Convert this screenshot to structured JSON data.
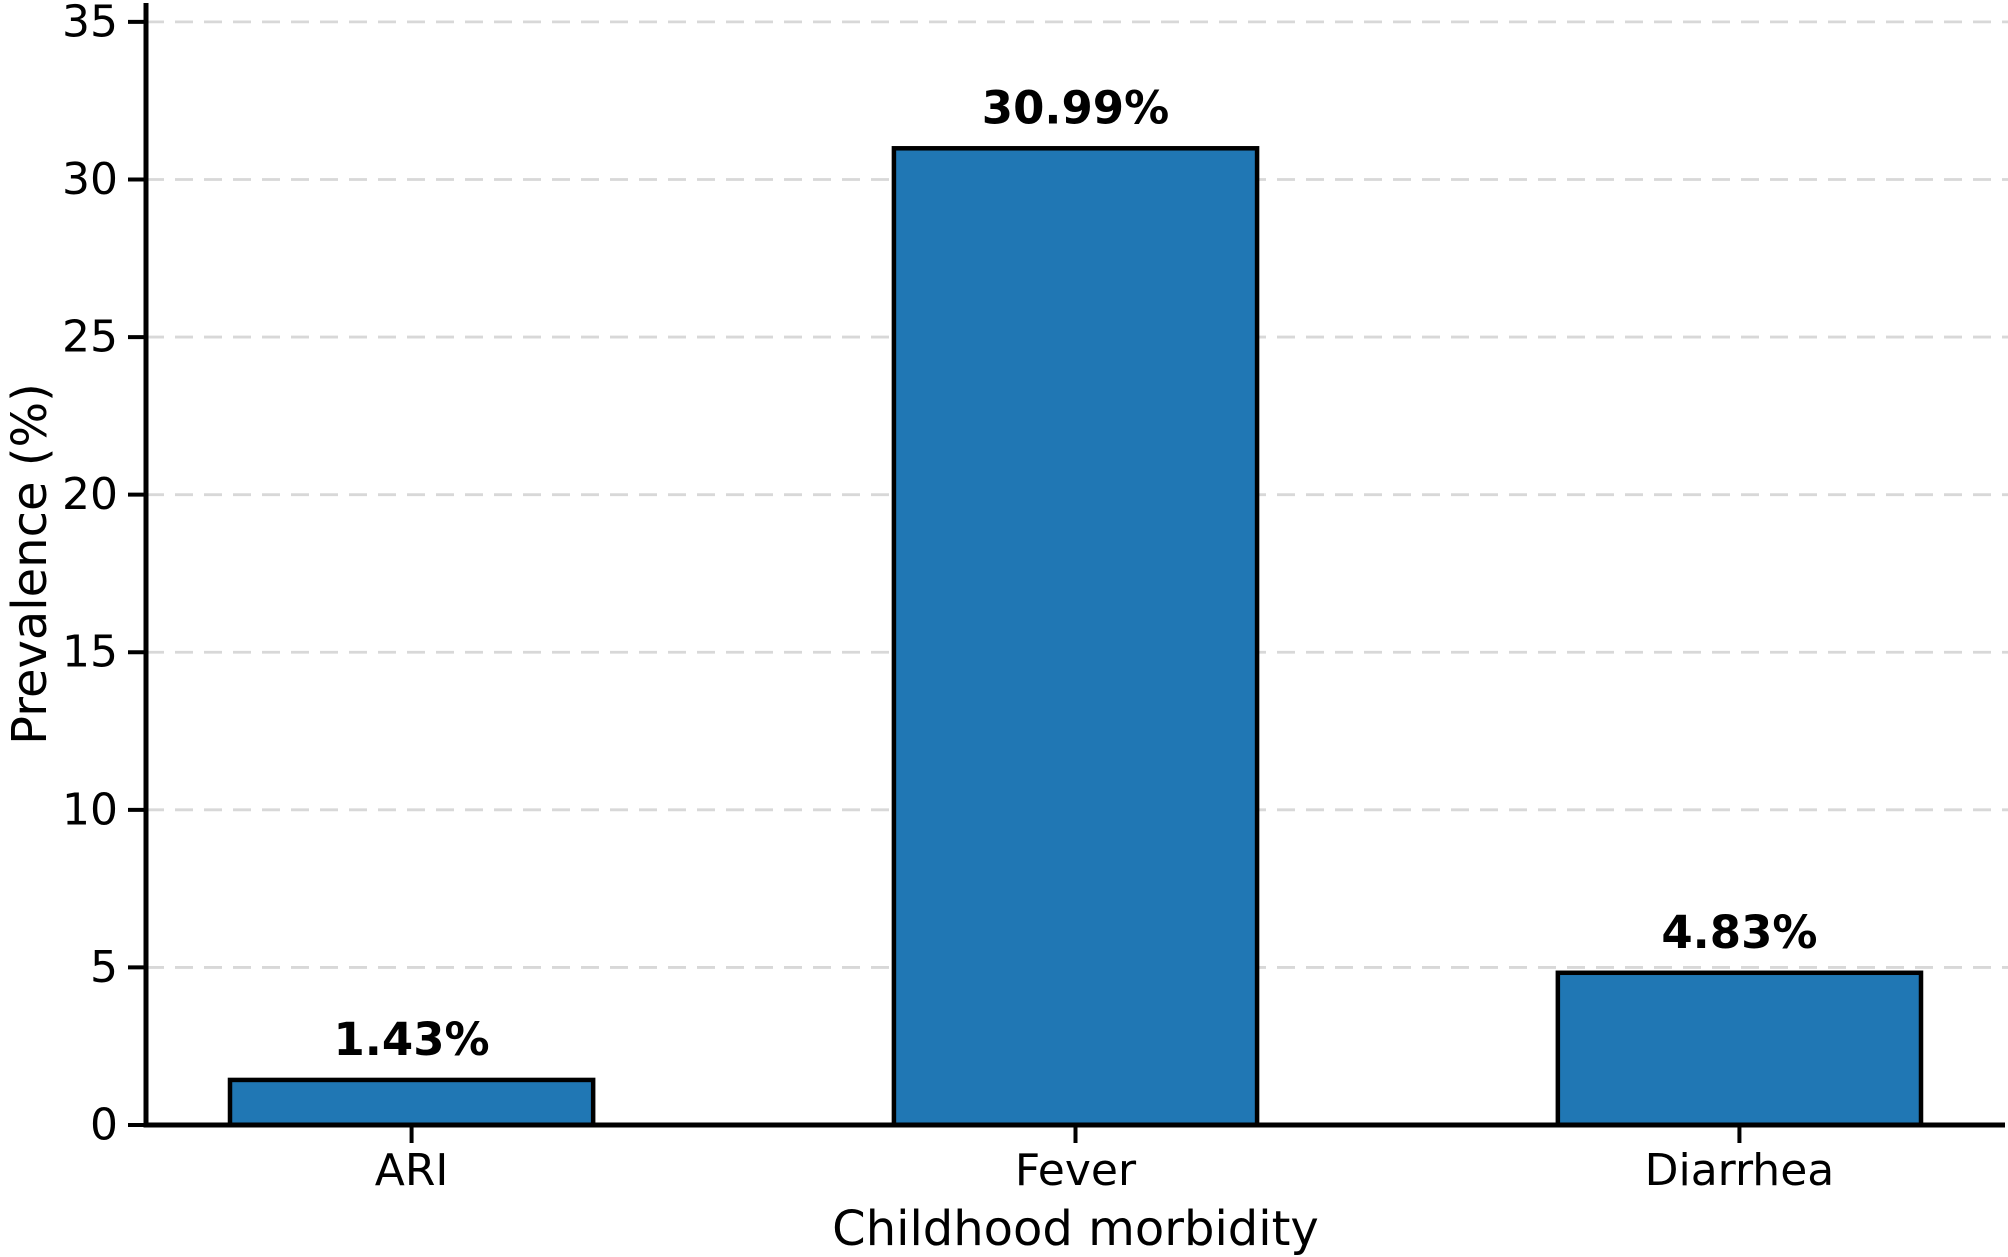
{
  "chart_data": {
    "type": "bar",
    "title": "",
    "xlabel": "Childhood morbidity",
    "ylabel": "Prevalence (%)",
    "categories": [
      "ARI",
      "Fever",
      "Diarrhea"
    ],
    "values": [
      1.43,
      30.99,
      4.83
    ],
    "bar_labels": [
      "1.43%",
      "30.99%",
      "4.83%"
    ],
    "ylim": [
      0,
      35.6
    ],
    "yticks": [
      0,
      5,
      10,
      15,
      20,
      25,
      30,
      35
    ],
    "grid": "horizontal dashed gridlines at each y tick",
    "legend_position": "none",
    "colors": {
      "bar_fill": "#2077B4",
      "bar_edge": "#000000",
      "grid_line": "#D8D8D8",
      "axis_line": "#000000",
      "text": "#000000",
      "background": "#FFFFFF"
    }
  }
}
